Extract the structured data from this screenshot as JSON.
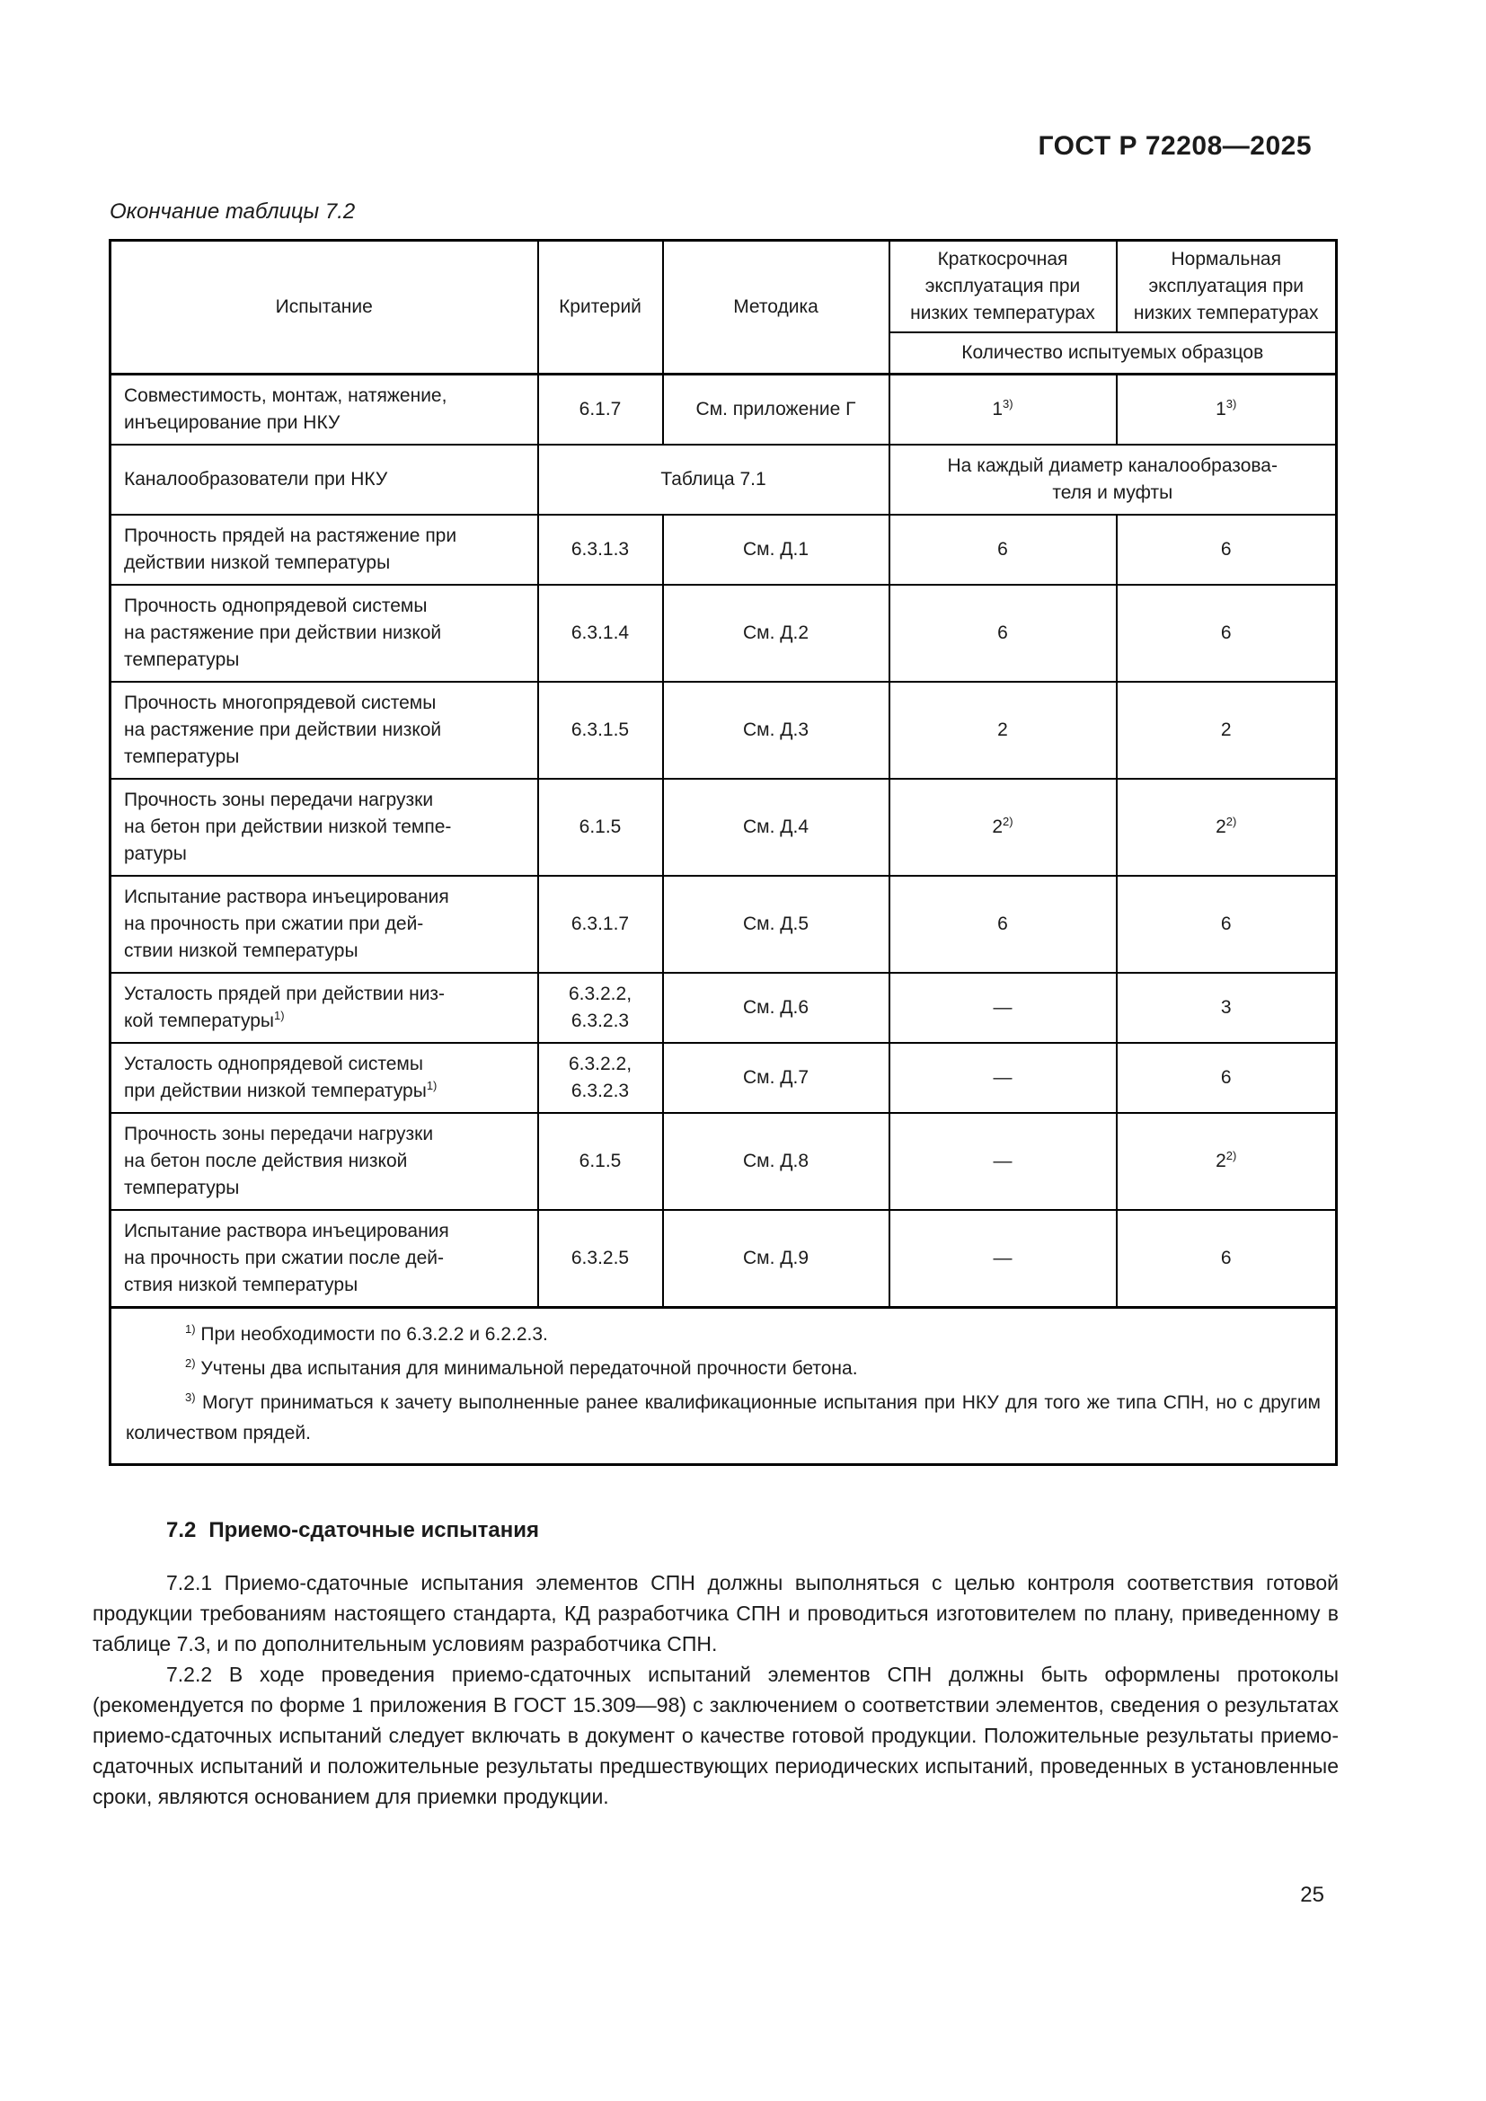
{
  "colors": {
    "background": "#ffffff",
    "text": "#1b1b1b",
    "border": "#000000"
  },
  "page": {
    "header": "ГОСТ Р 72208—2025",
    "number": "25"
  },
  "table": {
    "caption": "Окончание таблицы 7.2",
    "headers": {
      "col1": "Испытание",
      "col2": "Критерий",
      "col3": "Методика",
      "col4": "Краткосрочная эксплуатация при низких температурах",
      "col5": "Нормальная эксплуатация при низких температурах",
      "subheader": "Количество испытуемых образцов"
    },
    "rows": [
      {
        "cells": [
          {
            "lines": [
              "Совместимость, монтаж, натяжение,",
              "инъецирование при НКУ"
            ]
          },
          {
            "lines": [
              "6.1.7"
            ]
          },
          {
            "lines": [
              "См. приложение Г"
            ]
          },
          {
            "lines": [
              "1"
            ],
            "sup": "3)"
          },
          {
            "lines": [
              "1"
            ],
            "sup": "3)"
          }
        ]
      },
      {
        "cells": [
          {
            "lines": [
              "Каналообразователи при НКУ"
            ]
          },
          {
            "lines": [
              "Таблица 7.1"
            ],
            "colspan": 2
          },
          {
            "lines": [
              "На каждый диаметр каналообразова-",
              "теля и муфты"
            ],
            "colspan": 2
          }
        ]
      },
      {
        "cells": [
          {
            "lines": [
              "Прочность прядей на растяжение при",
              "действии низкой температуры"
            ]
          },
          {
            "lines": [
              "6.3.1.3"
            ]
          },
          {
            "lines": [
              "См. Д.1"
            ]
          },
          {
            "lines": [
              "6"
            ]
          },
          {
            "lines": [
              "6"
            ]
          }
        ]
      },
      {
        "cells": [
          {
            "lines": [
              "Прочность однопрядевой системы",
              "на растяжение при действии низкой",
              "температуры"
            ]
          },
          {
            "lines": [
              "6.3.1.4"
            ]
          },
          {
            "lines": [
              "См. Д.2"
            ]
          },
          {
            "lines": [
              "6"
            ]
          },
          {
            "lines": [
              "6"
            ]
          }
        ]
      },
      {
        "cells": [
          {
            "lines": [
              "Прочность многопрядевой системы",
              "на растяжение при действии низкой",
              "температуры"
            ]
          },
          {
            "lines": [
              "6.3.1.5"
            ]
          },
          {
            "lines": [
              "См. Д.3"
            ]
          },
          {
            "lines": [
              "2"
            ]
          },
          {
            "lines": [
              "2"
            ]
          }
        ]
      },
      {
        "cells": [
          {
            "lines": [
              "Прочность зоны передачи нагрузки",
              "на бетон при действии низкой темпе-",
              "ратуры"
            ]
          },
          {
            "lines": [
              "6.1.5"
            ]
          },
          {
            "lines": [
              "См. Д.4"
            ]
          },
          {
            "lines": [
              "2"
            ],
            "sup": "2)"
          },
          {
            "lines": [
              "2"
            ],
            "sup": "2)"
          }
        ]
      },
      {
        "cells": [
          {
            "lines": [
              "Испытание раствора инъецирования",
              "на прочность при сжатии при дей-",
              "ствии низкой температуры"
            ]
          },
          {
            "lines": [
              "6.3.1.7"
            ]
          },
          {
            "lines": [
              "См. Д.5"
            ]
          },
          {
            "lines": [
              "6"
            ]
          },
          {
            "lines": [
              "6"
            ]
          }
        ]
      },
      {
        "cells": [
          {
            "lines": [
              "Усталость прядей при действии низ-",
              "кой температуры"
            ],
            "sup": "1)"
          },
          {
            "lines": [
              "6.3.2.2,",
              "6.3.2.3"
            ]
          },
          {
            "lines": [
              "См. Д.6"
            ]
          },
          {
            "lines": [
              "—"
            ]
          },
          {
            "lines": [
              "3"
            ]
          }
        ]
      },
      {
        "cells": [
          {
            "lines": [
              "Усталость однопрядевой системы",
              "при действии низкой температуры"
            ],
            "sup": "1)"
          },
          {
            "lines": [
              "6.3.2.2,",
              "6.3.2.3"
            ]
          },
          {
            "lines": [
              "См. Д.7"
            ]
          },
          {
            "lines": [
              "—"
            ]
          },
          {
            "lines": [
              "6"
            ]
          }
        ]
      },
      {
        "cells": [
          {
            "lines": [
              "Прочность зоны передачи нагрузки",
              "на бетон после действия низкой",
              "температуры"
            ]
          },
          {
            "lines": [
              "6.1.5"
            ]
          },
          {
            "lines": [
              "См. Д.8"
            ]
          },
          {
            "lines": [
              "—"
            ]
          },
          {
            "lines": [
              "2"
            ],
            "sup": "2)"
          }
        ]
      },
      {
        "cells": [
          {
            "lines": [
              "Испытание раствора инъецирования",
              "на прочность при сжатии после дей-",
              "ствия низкой температуры"
            ]
          },
          {
            "lines": [
              "6.3.2.5"
            ]
          },
          {
            "lines": [
              "См. Д.9"
            ]
          },
          {
            "lines": [
              "—"
            ]
          },
          {
            "lines": [
              "6"
            ]
          }
        ]
      }
    ],
    "footnotes": [
      {
        "marker": "1)",
        "text": "При необходимости по 6.3.2.2 и 6.2.2.3."
      },
      {
        "marker": "2)",
        "text": "Учтены два испытания для минимальной передаточной прочности бетона."
      },
      {
        "marker": "3)",
        "text": "Могут приниматься к зачету выполненные ранее квалификационные испытания при НКУ для того же типа СПН, но с другим количеством прядей."
      }
    ]
  },
  "section": {
    "number": "7.2",
    "title": "Приемо-сдаточные испытания",
    "paragraphs": [
      "7.2.1 Приемо-сдаточные испытания элементов СПН должны выполняться с целью контроля соответствия готовой продукции требованиям настоящего стандарта, КД разработчика СПН и проводиться изготовителем по плану, приведенному в таблице 7.3, и по дополнительным условиям разработчика СПН.",
      "7.2.2 В ходе проведения приемо-сдаточных испытаний элементов СПН должны быть оформлены протоколы (рекомендуется по форме 1 приложения В ГОСТ 15.309—98) с заключением о соответствии элементов, сведения о результатах приемо-сдаточных испытаний следует включать в документ о качестве готовой продукции. Положительные результаты приемо-сдаточных испытаний и положительные результаты предшествующих периодических испытаний, проведенных в установленные сроки, являются основанием для приемки продукции."
    ]
  }
}
